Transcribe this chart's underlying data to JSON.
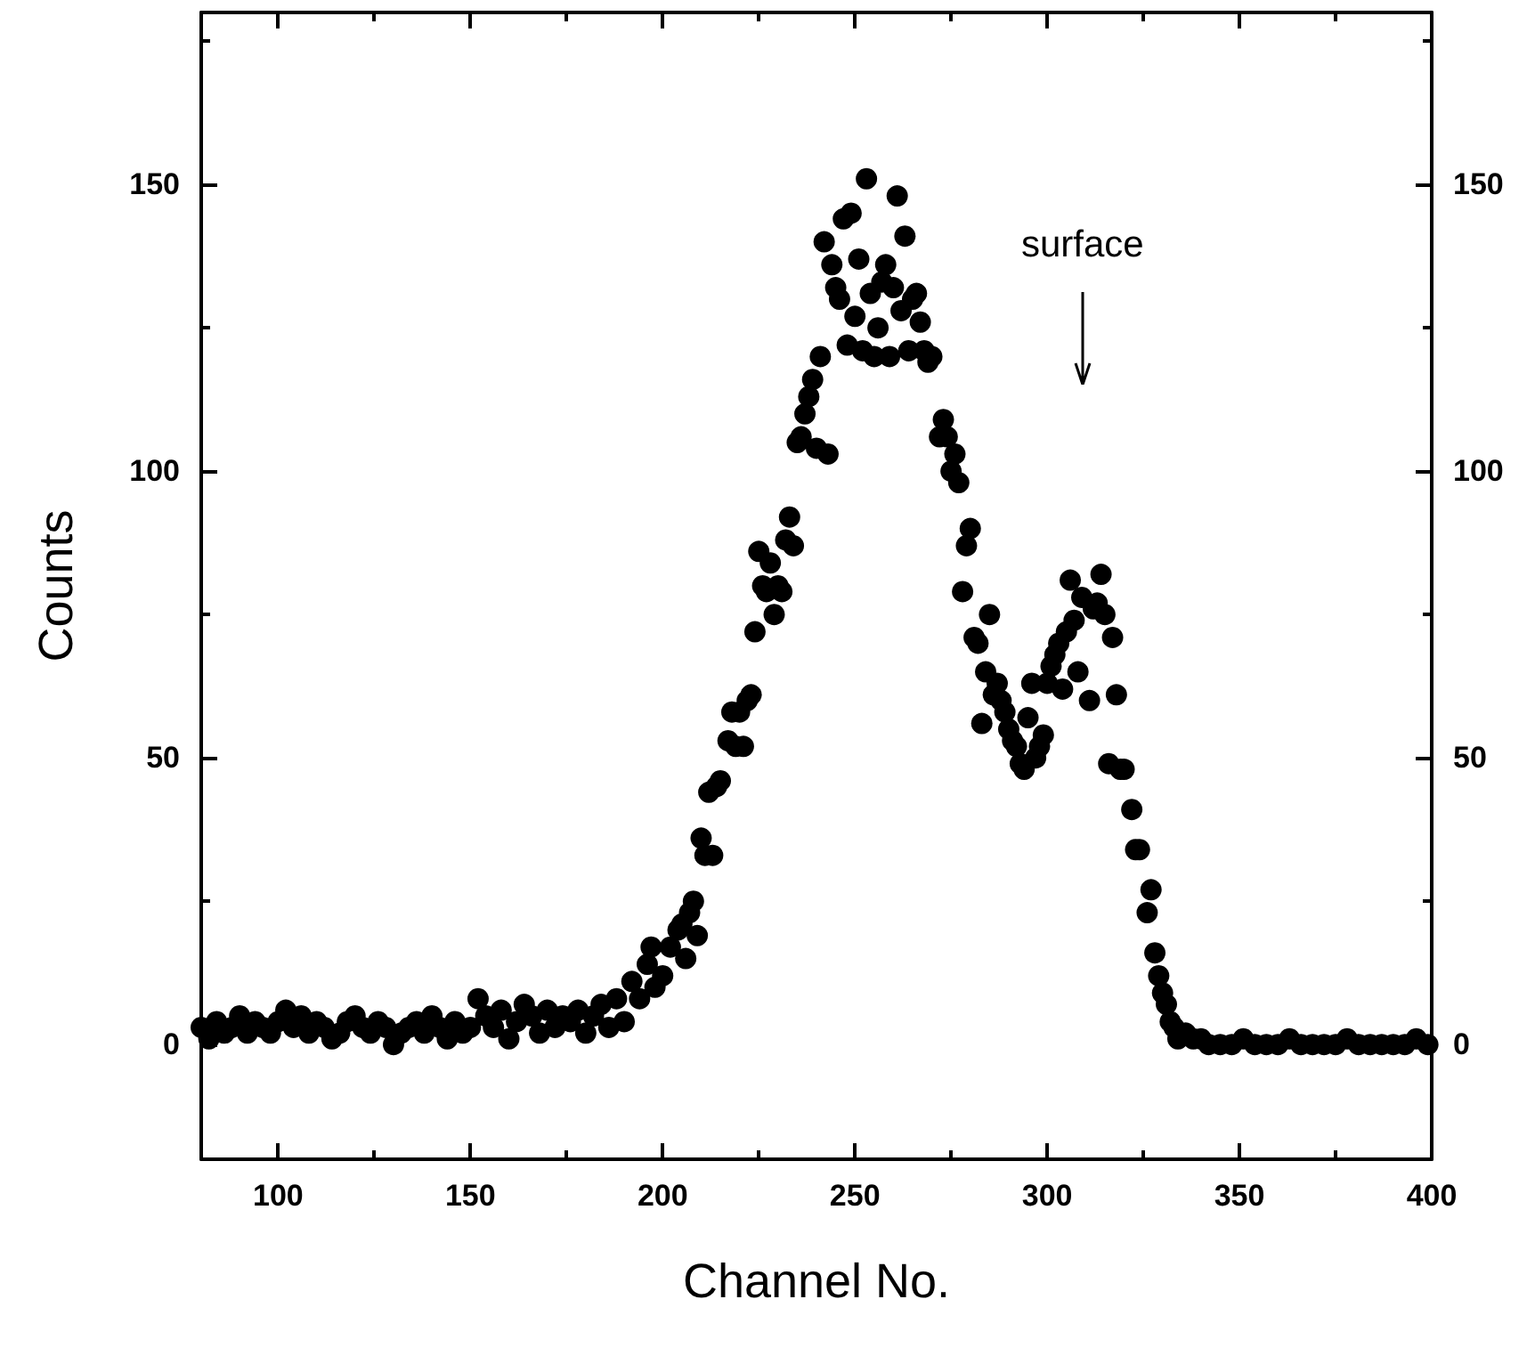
{
  "chart_data": {
    "type": "scatter",
    "xlabel": "Channel No.",
    "ylabel": "Counts",
    "marker": "circle",
    "grid": false,
    "xlim": [
      80,
      400
    ],
    "xticks": [
      100,
      150,
      200,
      250,
      300,
      350,
      400
    ],
    "ylim": [
      -20,
      180
    ],
    "yticks": [
      0,
      50,
      100,
      150
    ],
    "y2lim": [
      -20,
      180
    ],
    "y2ticks": [
      0,
      50,
      100,
      150
    ],
    "annotations": [
      "surface"
    ],
    "series": [
      {
        "color": "#000000",
        "x": [
          80,
          82,
          84,
          86,
          88,
          90,
          92,
          94,
          96,
          98,
          100,
          102,
          104,
          106,
          108,
          110,
          112,
          114,
          116,
          118,
          120,
          122,
          124,
          126,
          128,
          130,
          132,
          134,
          136,
          138,
          140,
          142,
          144,
          146,
          148,
          150,
          152,
          154,
          156,
          158,
          160,
          162,
          164,
          166,
          168,
          170,
          172,
          174,
          176,
          178,
          180,
          182,
          184,
          186,
          188,
          190,
          192,
          194,
          196,
          197,
          198,
          200,
          202,
          204,
          205,
          206,
          207,
          208,
          209,
          210,
          211,
          212,
          213,
          214,
          215,
          217,
          218,
          219,
          220,
          221,
          222,
          223,
          224,
          225,
          226,
          227,
          228,
          229,
          230,
          231,
          232,
          233,
          234,
          235,
          236,
          237,
          238,
          239,
          240,
          241,
          242,
          243,
          244,
          245,
          246,
          247,
          248,
          249,
          250,
          251,
          252,
          253,
          254,
          255,
          256,
          257,
          258,
          259,
          260,
          261,
          262,
          263,
          264,
          265,
          266,
          267,
          268,
          269,
          270,
          272,
          273,
          274,
          275,
          276,
          277,
          278,
          279,
          280,
          281,
          282,
          283,
          284,
          285,
          286,
          287,
          288,
          289,
          290,
          291,
          292,
          293,
          294,
          295,
          296,
          297,
          298,
          299,
          300,
          301,
          302,
          303,
          304,
          305,
          306,
          307,
          308,
          309,
          311,
          312,
          313,
          314,
          315,
          316,
          317,
          318,
          319,
          320,
          322,
          323,
          324,
          326,
          327,
          328,
          329,
          330,
          331,
          332,
          333,
          334,
          336,
          338,
          340,
          342,
          345,
          348,
          351,
          354,
          357,
          360,
          363,
          366,
          369,
          372,
          375,
          378,
          381,
          384,
          387,
          390,
          393,
          396,
          399
        ],
        "values": [
          3,
          1,
          4,
          2,
          3,
          5,
          2,
          4,
          3,
          2,
          4,
          6,
          3,
          5,
          2,
          4,
          3,
          1,
          2,
          4,
          5,
          3,
          2,
          4,
          3,
          0,
          2,
          3,
          4,
          2,
          5,
          3,
          1,
          4,
          2,
          3,
          8,
          5,
          3,
          6,
          1,
          4,
          7,
          5,
          2,
          6,
          3,
          5,
          4,
          6,
          2,
          5,
          7,
          3,
          8,
          4,
          11,
          8,
          14,
          17,
          10,
          12,
          17,
          20,
          21,
          15,
          23,
          25,
          19,
          36,
          33,
          44,
          33,
          45,
          46,
          53,
          58,
          52,
          58,
          52,
          60,
          61,
          72,
          86,
          80,
          79,
          84,
          75,
          80,
          79,
          88,
          92,
          87,
          105,
          106,
          110,
          113,
          116,
          104,
          120,
          140,
          103,
          136,
          132,
          130,
          144,
          122,
          145,
          127,
          137,
          121,
          151,
          131,
          120,
          125,
          133,
          136,
          120,
          132,
          148,
          128,
          141,
          121,
          130,
          131,
          126,
          121,
          119,
          120,
          106,
          109,
          106,
          100,
          103,
          98,
          79,
          87,
          90,
          71,
          70,
          56,
          65,
          75,
          61,
          63,
          60,
          58,
          55,
          53,
          52,
          49,
          48,
          57,
          63,
          50,
          52,
          54,
          63,
          66,
          68,
          70,
          62,
          72,
          81,
          74,
          65,
          78,
          60,
          76,
          77,
          82,
          75,
          49,
          71,
          61,
          48,
          48,
          41,
          34,
          34,
          23,
          27,
          16,
          12,
          9,
          7,
          4,
          3,
          1,
          2,
          1,
          1,
          0,
          0,
          0,
          1,
          0,
          0,
          0,
          1,
          0,
          0,
          0,
          0,
          1,
          0,
          0,
          0,
          0,
          0,
          1,
          0
        ]
      }
    ]
  }
}
